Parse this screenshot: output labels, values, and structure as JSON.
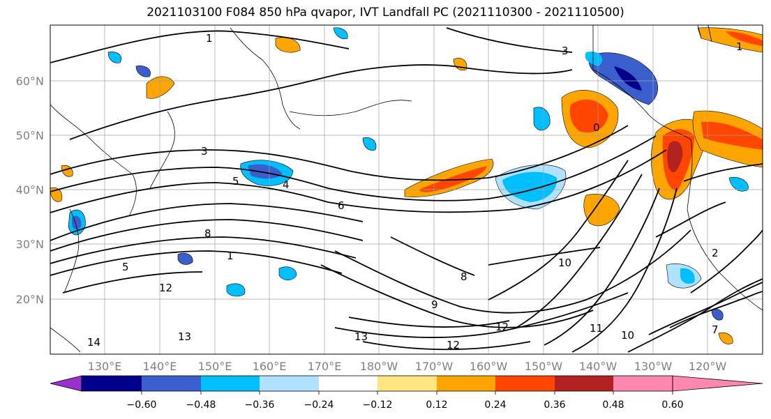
{
  "title": "2021103100 F084 850 hPa qvapor, IVT Landfall PC (2021110300 - 2021110500)",
  "map": {
    "lon_labels": [
      "130°E",
      "140°E",
      "150°E",
      "160°E",
      "170°E",
      "180°W",
      "170°W",
      "160°W",
      "150°W",
      "140°W",
      "130°W",
      "120°W"
    ],
    "lat_labels": [
      "60°N",
      "50°N",
      "40°N",
      "30°N",
      "20°N"
    ],
    "gridlines": true,
    "contour_labels": [
      "1",
      "3",
      "5",
      "4",
      "6",
      "8",
      "1",
      "5",
      "12",
      "14",
      "13",
      "11",
      "10",
      "12",
      "13",
      "10",
      "12",
      "9",
      "8",
      "7",
      "3",
      "1",
      "2",
      "0"
    ]
  },
  "colorbar": {
    "ticks": [
      "−0.60",
      "−0.48",
      "−0.36",
      "−0.24",
      "−0.12",
      "0.12",
      "0.24",
      "0.36",
      "0.48",
      "0.60"
    ],
    "colors": [
      "#9932cc",
      "#00008b",
      "#3a5fcd",
      "#00bfff",
      "#b0e2ff",
      "#ffffff",
      "#ffe680",
      "#ffa500",
      "#ff4500",
      "#b22222",
      "#ff88b0"
    ]
  }
}
